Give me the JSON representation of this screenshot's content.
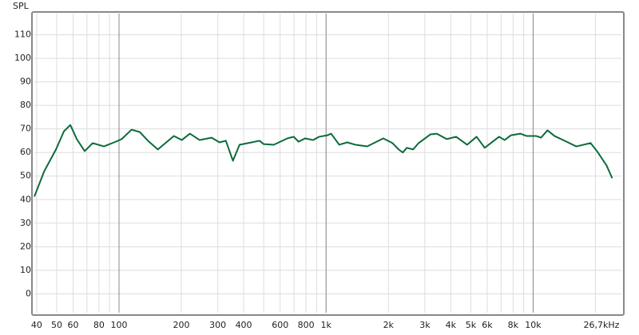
{
  "chart_data": {
    "type": "line",
    "y_label": "SPL",
    "x_scale": "log",
    "xlim": [
      39,
      26700
    ],
    "ylim": [
      -8,
      119
    ],
    "grid": true,
    "yticks": [
      0,
      10,
      20,
      30,
      40,
      50,
      60,
      70,
      80,
      90,
      100,
      110
    ],
    "xticks": [
      40,
      50,
      60,
      80,
      100,
      200,
      300,
      400,
      600,
      800,
      {
        "value": 1000,
        "label": "1k"
      },
      {
        "value": 2000,
        "label": "2k"
      },
      {
        "value": 3000,
        "label": "3k"
      },
      {
        "value": 4000,
        "label": "4k"
      },
      {
        "value": 5000,
        "label": "5k"
      },
      {
        "value": 6000,
        "label": "6k"
      },
      {
        "value": 8000,
        "label": "8k"
      },
      {
        "value": 10000,
        "label": "10k"
      },
      {
        "value": 26700,
        "label": "26,7kHz"
      }
    ],
    "x_minor_grid": [
      70,
      90,
      500,
      700,
      900,
      7000,
      9000,
      20000
    ],
    "x_major_grid": [
      100,
      1000,
      10000
    ],
    "series": [
      {
        "color": "#0b6b3a",
        "x": [
          39,
          43.5,
          49.6,
          54.2,
          58.2,
          62.5,
          68.3,
          74.6,
          84.5,
          96.5,
          103,
          115,
          126,
          138,
          154,
          184,
          201,
          220,
          245,
          280,
          306,
          328,
          355,
          382,
          437,
          477,
          499,
          559,
          650,
          698,
          736,
          792,
          866,
          927,
          1013,
          1058,
          1157,
          1265,
          1384,
          1581,
          1889,
          2093,
          2242,
          2347,
          2455,
          2631,
          2799,
          3193,
          3424,
          3829,
          4246,
          4799,
          5333,
          5835,
          6848,
          7284,
          7805,
          8677,
          9312,
          10354,
          10917,
          11726,
          12700,
          14500,
          16160,
          18950,
          20340,
          22630,
          24100
        ],
        "values": [
          41.3,
          52,
          61.3,
          69,
          71.7,
          65.7,
          60.6,
          64,
          62.6,
          64.6,
          65.7,
          69.7,
          68.7,
          65,
          61.3,
          67,
          65.3,
          68,
          65.3,
          66.3,
          64.3,
          65,
          56.5,
          63.3,
          64.3,
          65,
          63.6,
          63.3,
          66,
          66.7,
          64.6,
          66,
          65.3,
          66.7,
          67.3,
          68,
          63.3,
          64.3,
          63.3,
          62.6,
          66,
          64,
          61.3,
          60,
          62,
          61.3,
          64,
          67.7,
          68,
          65.7,
          66.7,
          63.3,
          66.7,
          62,
          66.7,
          65.3,
          67.3,
          68,
          67,
          67,
          66.3,
          69.4,
          67,
          64.6,
          62.6,
          64,
          60.6,
          54.5,
          49.1
        ]
      }
    ]
  }
}
